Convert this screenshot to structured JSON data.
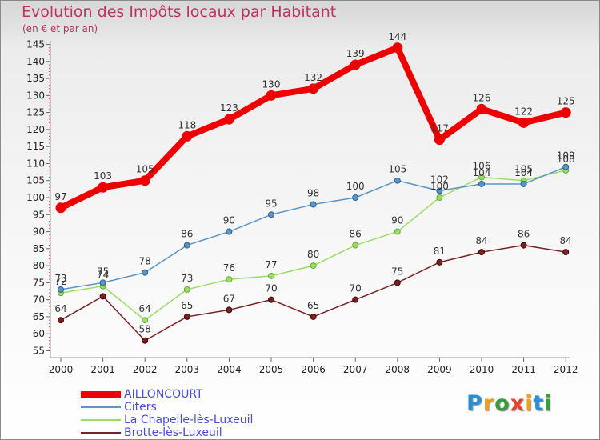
{
  "title": "Evolution des Impôts locaux par Habitant",
  "subtitle": "(en € et par an)",
  "logo": {
    "text": [
      "P",
      "r",
      "o",
      "x",
      "i",
      "t",
      "i"
    ],
    "colors": [
      "#2a8fd6",
      "#f0a020",
      "#3a9d3a",
      "#e8412c",
      "#f0a020",
      "#2a8fd6",
      "#3a9d3a"
    ]
  },
  "chart_data": {
    "type": "line",
    "title": "Evolution des Impôts locaux par Habitant",
    "subtitle": "(en € et par an)",
    "x": [
      "2000",
      "2001",
      "2002",
      "2003",
      "2004",
      "2005",
      "2006",
      "2007",
      "2008",
      "2009",
      "2010",
      "2011",
      "2012"
    ],
    "y_ticks": [
      "55",
      "60",
      "65",
      "70",
      "75",
      "80",
      "85",
      "90",
      "95",
      "100",
      "105",
      "110",
      "115",
      "120",
      "125",
      "130",
      "135",
      "140",
      "145"
    ],
    "ylim": [
      53,
      147
    ],
    "grid": false,
    "legend_position": "bottom-left",
    "series": [
      {
        "name": "AILLONCOURT",
        "color": "#ee0000",
        "width": 8,
        "marker": 6,
        "values": [
          97,
          103,
          105,
          118,
          123,
          130,
          132,
          139,
          144,
          117,
          126,
          122,
          125
        ],
        "labels": [
          "97",
          "103",
          "105",
          "118",
          "123",
          "130",
          "132",
          "139",
          "144",
          "117",
          "126",
          "122",
          "125"
        ]
      },
      {
        "name": "Citers",
        "color": "#5b95c6",
        "width": 1.5,
        "marker": 3.5,
        "values": [
          73,
          75,
          78,
          86,
          90,
          95,
          98,
          100,
          105,
          102,
          104,
          104,
          109
        ],
        "labels": [
          "73",
          "75",
          "78",
          "86",
          "90",
          "95",
          "98",
          "100",
          "105",
          "102",
          "104",
          "104",
          "109"
        ]
      },
      {
        "name": "La Chapelle-lès-Luxeuil",
        "color": "#99dd66",
        "width": 1.5,
        "marker": 3.5,
        "values": [
          72,
          74,
          64,
          73,
          76,
          77,
          80,
          86,
          90,
          100,
          106,
          105,
          108
        ],
        "labels": [
          "72",
          "74",
          "64",
          "73",
          "76",
          "77",
          "80",
          "86",
          "90",
          "100",
          "106",
          "105",
          "108"
        ]
      },
      {
        "name": "Brotte-lès-Luxeuil",
        "color": "#772222",
        "width": 1.5,
        "marker": 3.5,
        "values": [
          64,
          71,
          58,
          65,
          67,
          70,
          65,
          70,
          75,
          81,
          84,
          86,
          84
        ],
        "labels": [
          "64",
          "",
          "58",
          "65",
          "67",
          "70",
          "65",
          "70",
          "75",
          "81",
          "84",
          "86",
          "84"
        ]
      }
    ]
  }
}
